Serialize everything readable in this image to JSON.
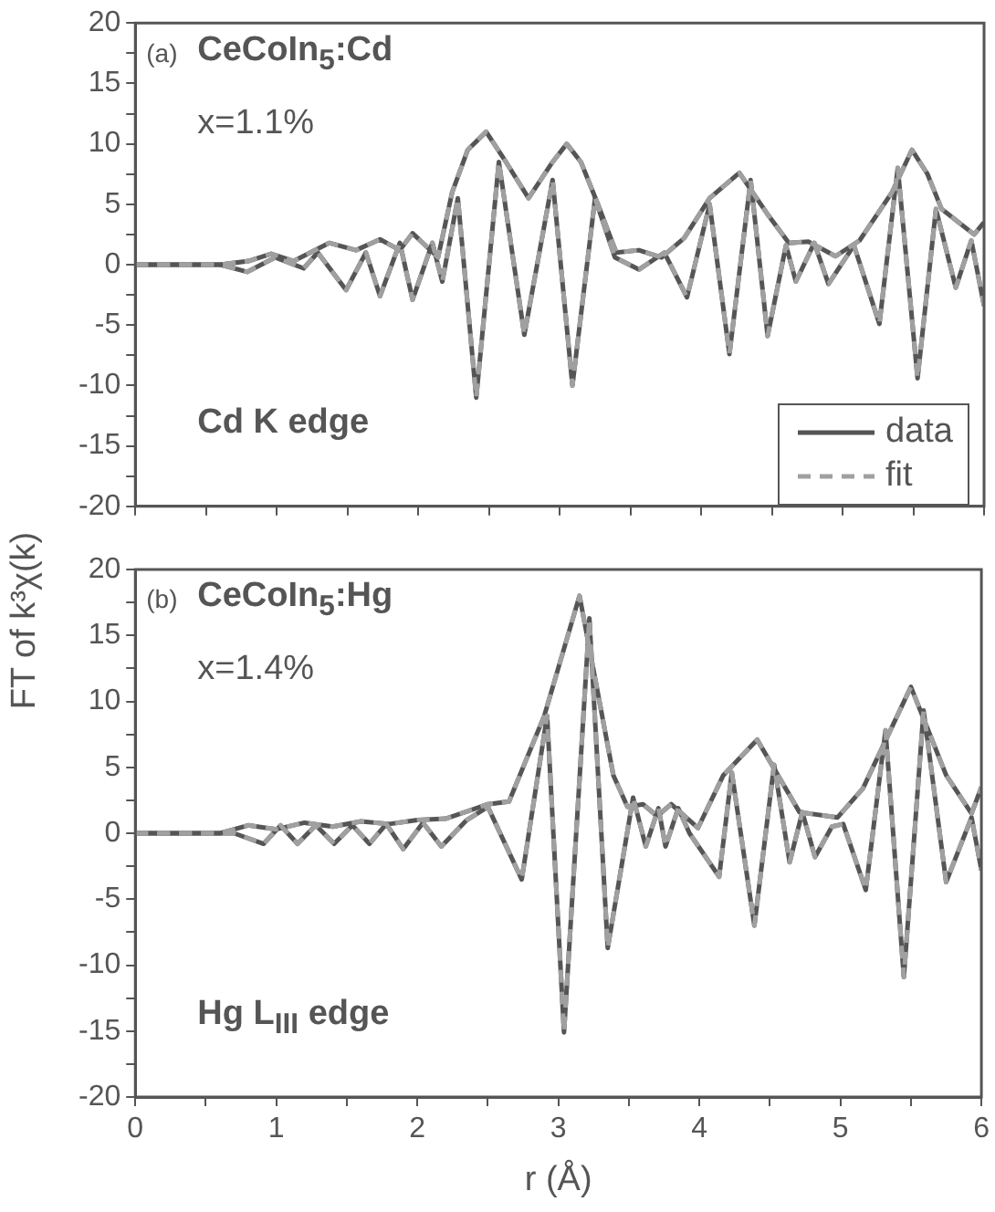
{
  "chart_data": [
    {
      "type": "line",
      "ylabel": "FT of k³χ(k)",
      "xlim": [
        0,
        6
      ],
      "xticks": [
        0,
        {
          "value": 0.5,
          "label": null
        },
        1,
        {
          "value": 1.5,
          "label": null
        },
        2,
        {
          "value": 2.5,
          "label": null
        },
        3,
        {
          "value": 3.5,
          "label": null
        },
        4,
        {
          "value": 4.5,
          "label": null
        },
        5,
        {
          "value": 5.5,
          "label": null
        },
        6
      ],
      "ylim": [
        -20,
        20
      ],
      "yticks": [
        -20,
        {
          "value": -17.5,
          "label": null
        },
        -15,
        {
          "value": -12.5,
          "label": null
        },
        -10,
        {
          "value": -7.5,
          "label": null
        },
        -5,
        {
          "value": -2.5,
          "label": null
        },
        0,
        {
          "value": 2.5,
          "label": null
        },
        5,
        {
          "value": 7.5,
          "label": null
        },
        10,
        {
          "value": 12.5,
          "label": null
        },
        15,
        {
          "value": 17.5,
          "label": null
        },
        20
      ],
      "tick_labels": "y",
      "legend": "bottom right",
      "marker": "none",
      "annotations": [
        "(a)",
        "CeCoIn$_{5}$:Cd",
        "x=1.1%",
        "Cd K edge"
      ],
      "series": [
        {
          "name": "data",
          "color": "#555555",
          "line_style": "solid",
          "x": [
            0,
            0.6,
            0.8,
            0.96,
            1.12,
            1.37,
            1.56,
            1.73,
            1.87,
            1.96,
            2.14,
            2.24,
            2.35,
            2.48,
            2.62,
            2.78,
            2.95,
            3.05,
            3.15,
            3.27,
            3.4,
            3.56,
            3.72,
            3.88,
            4.06,
            4.27,
            4.48,
            4.62,
            4.76,
            4.95,
            5.12,
            5.35,
            5.49,
            5.6,
            5.7,
            5.93,
            6
          ],
          "values": [
            0,
            0,
            0.3,
            0.9,
            0.3,
            1.8,
            1.2,
            2.1,
            1.2,
            2.6,
            0.6,
            6,
            9.5,
            11,
            8.5,
            5.5,
            8.5,
            10,
            8.5,
            5,
            1,
            1.2,
            0.6,
            2.2,
            5.5,
            7.6,
            4,
            1.8,
            1.9,
            0.7,
            2,
            6,
            9.5,
            7.5,
            4.6,
            2.5,
            3.5
          ]
        },
        {
          "color": "#555555",
          "line_style": "solid",
          "x": [
            0,
            0.6,
            0.79,
            0.99,
            1.19,
            1.29,
            1.49,
            1.63,
            1.73,
            1.87,
            1.96,
            2.1,
            2.17,
            2.28,
            2.41,
            2.57,
            2.75,
            2.95,
            3.09,
            3.25,
            3.39,
            3.56,
            3.74,
            3.9,
            4.06,
            4.2,
            4.35,
            4.47,
            4.6,
            4.67,
            4.8,
            4.9,
            5.08,
            5.26,
            5.39,
            5.53,
            5.66,
            5.8,
            5.91,
            6
          ],
          "values": [
            0,
            0,
            -0.6,
            0.6,
            -0.3,
            1,
            -2.1,
            1,
            -2.6,
            1.8,
            -2.9,
            1.8,
            -1.4,
            5.5,
            -11,
            8.5,
            -5.8,
            7,
            -10,
            5.5,
            0.6,
            -0.4,
            1,
            -2.7,
            5,
            -7.4,
            7,
            -5.9,
            1.6,
            -1.4,
            1.8,
            -1.6,
            1.6,
            -4.9,
            8,
            -9.4,
            4.6,
            -1.9,
            2,
            -3.4
          ]
        },
        {
          "name": "fit",
          "color": "#a0a0a0",
          "line_style": "dashed",
          "x": [
            0,
            0.6,
            0.8,
            0.96,
            1.12,
            1.37,
            1.56,
            1.73,
            1.87,
            1.96,
            2.14,
            2.24,
            2.35,
            2.48,
            2.62,
            2.78,
            2.95,
            3.05,
            3.15,
            3.27,
            3.4,
            3.56,
            3.72,
            3.88,
            4.06,
            4.27,
            4.48,
            4.62,
            4.76,
            4.95,
            5.12,
            5.35,
            5.49,
            5.6,
            5.7,
            5.93,
            6
          ],
          "values": [
            0,
            0,
            0.3,
            0.9,
            0.3,
            1.8,
            1.2,
            2.1,
            1.2,
            2.6,
            0.6,
            6,
            9.5,
            11,
            8.5,
            5.5,
            8.5,
            10,
            8.5,
            5,
            1,
            1.2,
            0.6,
            2.2,
            5.5,
            7.6,
            4,
            1.8,
            1.9,
            0.7,
            2,
            6,
            9.5,
            7.5,
            4.6,
            2.5,
            3.5
          ]
        },
        {
          "color": "#a0a0a0",
          "line_style": "dashed",
          "x": [
            0,
            0.6,
            0.79,
            0.99,
            1.19,
            1.29,
            1.49,
            1.63,
            1.73,
            1.87,
            1.96,
            2.1,
            2.17,
            2.28,
            2.41,
            2.57,
            2.75,
            2.95,
            3.09,
            3.25,
            3.39,
            3.56,
            3.74,
            3.9,
            4.06,
            4.2,
            4.35,
            4.47,
            4.6,
            4.67,
            4.8,
            4.9,
            5.08,
            5.26,
            5.39,
            5.53,
            5.66,
            5.8,
            5.91,
            6
          ],
          "values": [
            0,
            0,
            -0.6,
            0.6,
            -0.3,
            1,
            -2.1,
            1,
            -2.6,
            1.8,
            -2.9,
            1.8,
            -1.4,
            5.5,
            -11,
            8.5,
            -5.8,
            7,
            -10,
            5.5,
            0.6,
            -0.4,
            1,
            -2.7,
            5,
            -7.4,
            7,
            -5.9,
            1.6,
            -1.4,
            1.8,
            -1.6,
            1.6,
            -4.9,
            8,
            -9.4,
            4.6,
            -1.9,
            2,
            -3.4
          ]
        }
      ]
    },
    {
      "type": "line",
      "xlabel": "r (Å)",
      "xlim": [
        0,
        6
      ],
      "xticks": [
        0,
        {
          "value": 0.5,
          "label": null
        },
        1,
        {
          "value": 1.5,
          "label": null
        },
        2,
        {
          "value": 2.5,
          "label": null
        },
        3,
        {
          "value": 3.5,
          "label": null
        },
        4,
        {
          "value": 4.5,
          "label": null
        },
        5,
        {
          "value": 5.5,
          "label": null
        },
        6
      ],
      "ylim": [
        -20,
        20
      ],
      "yticks": [
        -20,
        {
          "value": -17.5,
          "label": null
        },
        -15,
        {
          "value": -12.5,
          "label": null
        },
        -10,
        {
          "value": -7.5,
          "label": null
        },
        -5,
        {
          "value": -2.5,
          "label": null
        },
        0,
        {
          "value": 2.5,
          "label": null
        },
        5,
        {
          "value": 7.5,
          "label": null
        },
        10,
        {
          "value": 12.5,
          "label": null
        },
        15,
        {
          "value": 17.5,
          "label": null
        },
        20
      ],
      "marker": "none",
      "annotations": [
        "(b)",
        "CeCoIn$_{5}$:Hg",
        "x=1.4%",
        "Hg L$_{III}$ edge"
      ],
      "series": [
        {
          "color": "#555555",
          "line_style": "solid",
          "x": [
            0,
            0.6,
            0.8,
            1.0,
            1.2,
            1.4,
            1.6,
            1.8,
            2.0,
            2.2,
            2.5,
            2.65,
            2.9,
            3.15,
            3.39,
            3.49,
            3.6,
            3.7,
            3.8,
            3.99,
            4.17,
            4.41,
            4.71,
            4.98,
            5.16,
            5.5,
            5.75,
            5.93,
            6
          ],
          "values": [
            0,
            0,
            0.6,
            0.3,
            0.8,
            0.5,
            0.9,
            0.7,
            1,
            1.1,
            2.2,
            2.4,
            8.9,
            18,
            4.4,
            2,
            2.2,
            1.3,
            2.2,
            0.4,
            4.4,
            7.1,
            1.6,
            1.2,
            3.4,
            11.1,
            4.4,
            1.5,
            3.5
          ]
        },
        {
          "color": "#555555",
          "line_style": "solid",
          "x": [
            0,
            0.7,
            0.91,
            1.03,
            1.15,
            1.28,
            1.41,
            1.54,
            1.66,
            1.78,
            1.9,
            2.04,
            2.17,
            2.35,
            2.5,
            2.74,
            2.92,
            3.04,
            3.22,
            3.35,
            3.53,
            3.62,
            3.71,
            3.76,
            3.85,
            3.93,
            4.14,
            4.23,
            4.39,
            4.53,
            4.64,
            4.73,
            4.82,
            4.94,
            5.02,
            5.18,
            5.32,
            5.45,
            5.59,
            5.75,
            5.93,
            6
          ],
          "values": [
            0,
            0,
            -0.8,
            0.6,
            -0.8,
            0.6,
            -0.8,
            0.6,
            -0.8,
            0.7,
            -1.2,
            0.8,
            -1,
            1,
            2,
            -3.5,
            8.9,
            -15.1,
            16.3,
            -8.7,
            2.7,
            -1,
            1.9,
            -1,
            1.9,
            0,
            -3.3,
            4.6,
            -7,
            5.2,
            -2.2,
            1.6,
            -1.8,
            0.5,
            0.7,
            -4.3,
            7.8,
            -10.9,
            9.3,
            -3.7,
            1.2,
            -2.8
          ]
        },
        {
          "color": "#a0a0a0",
          "line_style": "dashed",
          "x": [
            0,
            0.6,
            0.8,
            1.0,
            1.2,
            1.4,
            1.6,
            1.8,
            2.0,
            2.2,
            2.5,
            2.65,
            2.9,
            3.15,
            3.39,
            3.49,
            3.6,
            3.7,
            3.8,
            3.99,
            4.17,
            4.41,
            4.71,
            4.98,
            5.16,
            5.5,
            5.75,
            5.93,
            6
          ],
          "values": [
            0,
            0,
            0.6,
            0.3,
            0.8,
            0.5,
            0.9,
            0.7,
            1,
            1.1,
            2.2,
            2.4,
            8.9,
            18,
            4.4,
            2,
            2.2,
            1.3,
            2.2,
            0.4,
            4.4,
            7.1,
            1.6,
            1.2,
            3.4,
            11.1,
            4.4,
            1.5,
            3.5
          ]
        },
        {
          "color": "#a0a0a0",
          "line_style": "dashed",
          "x": [
            0,
            0.7,
            0.91,
            1.03,
            1.15,
            1.28,
            1.41,
            1.54,
            1.66,
            1.78,
            1.9,
            2.04,
            2.17,
            2.35,
            2.5,
            2.74,
            2.92,
            3.04,
            3.22,
            3.35,
            3.53,
            3.62,
            3.71,
            3.76,
            3.85,
            3.93,
            4.14,
            4.23,
            4.39,
            4.53,
            4.64,
            4.73,
            4.82,
            4.94,
            5.02,
            5.18,
            5.32,
            5.45,
            5.59,
            5.75,
            5.93,
            6
          ],
          "values": [
            0,
            0,
            -0.8,
            0.6,
            -0.8,
            0.6,
            -0.8,
            0.6,
            -0.8,
            0.7,
            -1.2,
            0.8,
            -1,
            1,
            2,
            -3.5,
            8.9,
            -15.1,
            16.3,
            -8.7,
            2.7,
            -1,
            1.9,
            -1,
            1.9,
            0,
            -3.3,
            4.6,
            -7,
            5.2,
            -2.2,
            1.6,
            -1.8,
            0.5,
            0.7,
            -4.3,
            7.8,
            -10.9,
            9.3,
            -3.7,
            1.2,
            -2.8
          ]
        }
      ]
    }
  ]
}
